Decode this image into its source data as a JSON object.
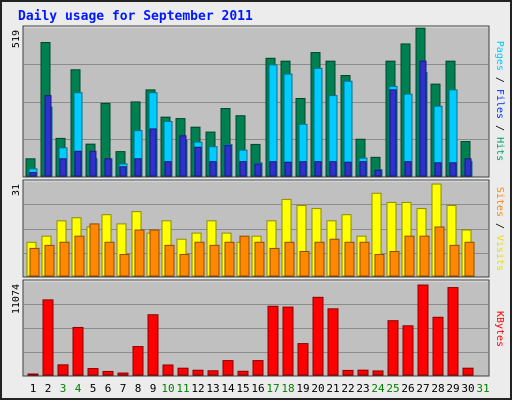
{
  "chart_data": {
    "type": "bar",
    "title": "Daily usage for September 2011",
    "categories": [
      "1",
      "2",
      "3",
      "4",
      "5",
      "6",
      "7",
      "8",
      "9",
      "10",
      "11",
      "12",
      "13",
      "14",
      "15",
      "16",
      "17",
      "18",
      "19",
      "20",
      "21",
      "22",
      "23",
      "24",
      "25",
      "26",
      "27",
      "28",
      "29",
      "30",
      "31"
    ],
    "weekend_days": [
      "3",
      "4",
      "10",
      "11",
      "17",
      "18",
      "24",
      "25",
      "31"
    ],
    "panels": [
      {
        "name": "hits",
        "max_label": "519",
        "ylim": [
          0,
          519
        ],
        "grid": true,
        "legend": [
          "Pages",
          "Files",
          "Hits"
        ],
        "series": [
          {
            "name": "Hits",
            "color": "#007f50",
            "values": [
              60,
              465,
              131,
              370,
              111,
              253,
              85,
              258,
              300,
              205,
              200,
              170,
              153,
              235,
              210,
              110,
              410,
              400,
              270,
              430,
              400,
              350,
              128,
              65,
              400,
              460,
              515,
              320,
              400,
              120,
              0
            ]
          },
          {
            "name": "Files",
            "color": "#00ccff",
            "values": [
              25,
              240,
              98,
              290,
              60,
              60,
              42,
              158,
              290,
              190,
              125,
              118,
              102,
              110,
              90,
              46,
              387,
              355,
              180,
              375,
              280,
              330,
              62,
              22,
              312,
              285,
              360,
              243,
              300,
              50,
              0
            ]
          },
          {
            "name": "Pages",
            "color": "#3030d0",
            "values": [
              12,
              280,
              60,
              86,
              86,
              60,
              32,
              60,
              164,
              50,
              140,
              100,
              50,
              106,
              50,
              42,
              50,
              48,
              50,
              50,
              50,
              48,
              50,
              20,
              300,
              50,
              400,
              46,
              46,
              60,
              0
            ]
          }
        ]
      },
      {
        "name": "visits",
        "max_label": "31",
        "ylim": [
          0,
          31
        ],
        "grid": true,
        "legend": [
          "Sites",
          "Visits"
        ],
        "series": [
          {
            "name": "Visits",
            "color": "#ffff00",
            "values": [
              11,
              13,
              18,
              19,
              16,
              20,
              17,
              21,
              14,
              18,
              12,
              14,
              18,
              14,
              11,
              13,
              18,
              25,
              23,
              22,
              18,
              20,
              13,
              27,
              24,
              24,
              22,
              30,
              23,
              15,
              0
            ]
          },
          {
            "name": "Sites",
            "color": "#ff8800",
            "values": [
              9,
              10,
              11,
              13,
              17,
              11,
              7,
              15,
              15,
              10,
              7,
              11,
              10,
              11,
              13,
              11,
              9,
              11,
              8,
              11,
              12,
              11,
              11,
              7,
              8,
              13,
              13,
              16,
              10,
              11,
              0
            ]
          }
        ]
      },
      {
        "name": "kbytes",
        "max_label": "11074",
        "ylim": [
          0,
          11074
        ],
        "grid": true,
        "legend": [
          "KBytes"
        ],
        "series": [
          {
            "name": "KBytes",
            "color": "#ff0000",
            "values": [
              80,
              8850,
              1200,
              5600,
              760,
              420,
              230,
              3350,
              7100,
              1180,
              800,
              560,
              500,
              1700,
              440,
              1700,
              8100,
              8000,
              3700,
              9150,
              7800,
              540,
              570,
              480,
              6400,
              5800,
              10600,
              6800,
              10300,
              800,
              0
            ]
          }
        ]
      }
    ]
  }
}
